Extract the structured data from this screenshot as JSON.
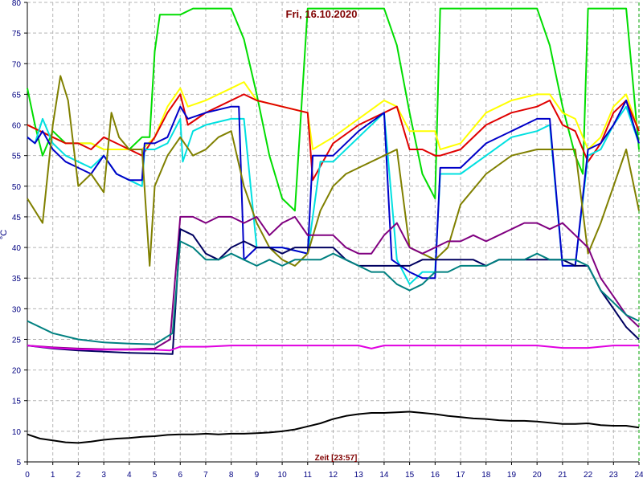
{
  "chart_data": {
    "type": "line",
    "title": "Fri, 16.10.2020",
    "xlabel": "Zeit [23:57]",
    "ylabel": "°C",
    "xlim": [
      0,
      24
    ],
    "ylim": [
      5,
      80
    ],
    "xticks": [
      0,
      1,
      2,
      3,
      4,
      5,
      6,
      7,
      8,
      9,
      10,
      11,
      12,
      13,
      14,
      15,
      16,
      17,
      18,
      19,
      20,
      21,
      22,
      23,
      24
    ],
    "yticks": [
      5,
      10,
      15,
      20,
      25,
      30,
      35,
      40,
      45,
      50,
      55,
      60,
      65,
      70,
      75,
      80
    ],
    "grid": true,
    "background": "#ffffff",
    "grid_color": "#b4b4b4",
    "series": [
      {
        "color": "#00dd00",
        "x": [
          0,
          0.3,
          0.6,
          1,
          1.5,
          2,
          2.5,
          3,
          3.5,
          4,
          4.5,
          4.8,
          5,
          5.2,
          6,
          6.5,
          7,
          7.5,
          8,
          8.5,
          9,
          9.5,
          10,
          10.5,
          11,
          11.2,
          12,
          13,
          14,
          14.5,
          15,
          15.5,
          16,
          16.2,
          17,
          18,
          19,
          20,
          20.5,
          21,
          21.5,
          21.8,
          22,
          22.2,
          23,
          23.5,
          24
        ],
        "y": [
          66,
          60,
          55,
          59,
          57,
          57,
          57,
          56,
          56,
          56,
          58,
          58,
          72,
          78,
          78,
          79,
          79,
          79,
          79,
          74,
          65,
          55,
          48,
          46,
          79,
          79,
          79,
          79,
          79,
          73,
          62,
          52,
          48,
          79,
          79,
          79,
          79,
          79,
          73,
          63,
          55,
          52,
          79,
          79,
          79,
          79,
          56
        ]
      },
      {
        "color": "#ffff00",
        "x": [
          0,
          0.5,
          1,
          1.5,
          2,
          2.5,
          3,
          3.5,
          4,
          4.5,
          5,
          5.5,
          6,
          6.3,
          7,
          8,
          8.5,
          9,
          10,
          11,
          11.2,
          12,
          13,
          14,
          14.5,
          15,
          15.5,
          16,
          16.2,
          17,
          18,
          19,
          20,
          20.5,
          21,
          21.5,
          22,
          22.5,
          23,
          23.5,
          24
        ],
        "y": [
          60,
          59,
          58,
          57,
          57,
          57,
          56,
          56,
          56,
          56,
          58,
          63,
          66,
          63,
          64,
          66,
          67,
          64,
          63,
          62,
          56,
          58,
          61,
          64,
          63,
          59,
          59,
          59,
          56,
          57,
          62,
          64,
          65,
          65,
          62,
          61,
          56,
          58,
          63,
          65,
          59
        ]
      },
      {
        "color": "#e00000",
        "x": [
          0,
          0.5,
          1,
          1.5,
          2,
          2.5,
          3,
          3.5,
          4,
          4.5,
          5,
          5.5,
          6,
          6.3,
          7,
          8,
          8.5,
          9,
          10,
          11,
          11.2,
          12,
          13,
          14,
          14.5,
          15,
          15.5,
          16,
          16.2,
          17,
          18,
          19,
          20,
          20.5,
          21,
          21.5,
          22,
          22.5,
          23,
          23.5,
          24
        ],
        "y": [
          60,
          59,
          58,
          57,
          57,
          56,
          58,
          57,
          56,
          55,
          58,
          62,
          65,
          60,
          62,
          64,
          65,
          64,
          63,
          62,
          51,
          57,
          60,
          62,
          63,
          56,
          56,
          55,
          55,
          56,
          60,
          62,
          63,
          64,
          60,
          59,
          54,
          57,
          62,
          64,
          59
        ]
      },
      {
        "color": "#00e0e0",
        "x": [
          0,
          0.3,
          0.6,
          1,
          1.5,
          2,
          2.5,
          3,
          3.5,
          4,
          4.5,
          4.6,
          5,
          5.5,
          6,
          6.1,
          6.5,
          7,
          8,
          8.5,
          9,
          10,
          11,
          11.5,
          12,
          13,
          14,
          14.5,
          15,
          15.5,
          16,
          16.2,
          17,
          18,
          19,
          20,
          20.5,
          21,
          21.5,
          22,
          22.5,
          23,
          23.5,
          24
        ],
        "y": [
          58,
          57,
          61,
          57,
          55,
          54,
          53,
          55,
          52,
          51,
          50,
          56,
          56,
          57,
          61,
          54,
          59,
          60,
          61,
          61,
          40,
          40,
          39,
          54,
          54,
          58,
          62,
          38,
          34,
          36,
          36,
          52,
          52,
          55,
          58,
          59,
          60,
          37,
          37,
          55,
          56,
          60,
          63,
          57
        ]
      },
      {
        "color": "#0000c8",
        "x": [
          0,
          0.3,
          0.6,
          1,
          1.5,
          2,
          2.5,
          3,
          3.5,
          4,
          4.5,
          4.6,
          5,
          5.5,
          6,
          6.3,
          7,
          8,
          8.3,
          8.5,
          9,
          10,
          11,
          11.2,
          12,
          13,
          14,
          14.3,
          15,
          15.5,
          16,
          16.2,
          17,
          18,
          19,
          20,
          20.5,
          21,
          21.5,
          22,
          22.5,
          23,
          23.5,
          24
        ],
        "y": [
          58,
          57,
          59,
          56,
          54,
          53,
          52,
          55,
          52,
          51,
          51,
          57,
          57,
          58,
          63,
          61,
          62,
          63,
          63,
          38,
          40,
          40,
          39,
          55,
          55,
          59,
          62,
          38,
          36,
          35,
          35,
          53,
          53,
          57,
          59,
          61,
          61,
          37,
          37,
          56,
          57,
          60,
          64,
          57
        ]
      },
      {
        "color": "#808000",
        "x": [
          0,
          0.3,
          0.6,
          1,
          1.3,
          1.6,
          2,
          2.5,
          3,
          3.3,
          3.6,
          4,
          4.5,
          4.8,
          5,
          5.5,
          6,
          6.5,
          7,
          7.5,
          8,
          8.5,
          9,
          9.5,
          10,
          10.5,
          11,
          11.5,
          12,
          12.5,
          13,
          14,
          14.5,
          15,
          15.5,
          16,
          16.5,
          17,
          18,
          19,
          20,
          20.5,
          21,
          21.5,
          22,
          22.5,
          23,
          23.5,
          24
        ],
        "y": [
          48,
          46,
          44,
          60,
          68,
          64,
          50,
          52,
          49,
          62,
          58,
          56,
          56,
          37,
          50,
          55,
          58,
          55,
          56,
          58,
          59,
          50,
          44,
          40,
          38,
          37,
          39,
          46,
          50,
          52,
          53,
          55,
          56,
          40,
          39,
          38,
          40,
          47,
          52,
          55,
          56,
          56,
          56,
          56,
          39,
          44,
          50,
          56,
          46
        ]
      },
      {
        "color": "#800080",
        "x": [
          0,
          1,
          2,
          3,
          4,
          5,
          5.6,
          6,
          6.5,
          7,
          7.5,
          8,
          8.5,
          9,
          9.5,
          10,
          10.5,
          11,
          11.5,
          12,
          12.5,
          13,
          13.5,
          14,
          14.5,
          15,
          15.5,
          16,
          16.5,
          17,
          17.5,
          18,
          18.5,
          19,
          19.5,
          20,
          20.5,
          21,
          21.5,
          22,
          22.5,
          23,
          23.5,
          24
        ],
        "y": [
          24,
          23.7,
          23.5,
          23.4,
          23.4,
          23.5,
          25,
          45,
          45,
          44,
          45,
          45,
          44,
          45,
          42,
          44,
          45,
          42,
          42,
          42,
          40,
          39,
          39,
          42,
          44,
          40,
          39,
          40,
          41,
          41,
          42,
          41,
          42,
          43,
          44,
          44,
          43,
          44,
          42,
          40,
          35,
          32,
          29,
          27
        ]
      },
      {
        "color": "#000060",
        "x": [
          0,
          1,
          2,
          3,
          4,
          5,
          5.7,
          6,
          6.5,
          7,
          7.5,
          8,
          8.5,
          9,
          9.5,
          10,
          10.5,
          11,
          11.5,
          12,
          12.5,
          13,
          13.5,
          14,
          14.5,
          15,
          15.5,
          16,
          16.5,
          17,
          17.5,
          18,
          18.5,
          19,
          19.5,
          20,
          20.5,
          21,
          21.5,
          22,
          22.5,
          23,
          23.5,
          24
        ],
        "y": [
          24,
          23.5,
          23.2,
          23,
          22.8,
          22.7,
          22.6,
          43,
          42,
          39,
          38,
          40,
          41,
          40,
          40,
          39,
          40,
          40,
          40,
          40,
          38,
          37,
          37,
          37,
          37,
          37,
          38,
          38,
          38,
          38,
          38,
          37,
          38,
          38,
          38,
          38,
          38,
          38,
          37,
          37,
          33,
          30,
          27,
          25
        ]
      },
      {
        "color": "#008080",
        "x": [
          0,
          1,
          2,
          3,
          4,
          5,
          5.7,
          6,
          6.5,
          7,
          7.5,
          8,
          8.5,
          9,
          9.5,
          10,
          10.5,
          11,
          11.5,
          12,
          12.5,
          13,
          13.5,
          14,
          14.5,
          15,
          15.5,
          16,
          16.5,
          17,
          17.5,
          18,
          18.5,
          19,
          19.5,
          20,
          20.5,
          21,
          21.5,
          22,
          22.5,
          23,
          23.5,
          24
        ],
        "y": [
          28,
          26,
          25,
          24.5,
          24.3,
          24.2,
          26,
          41,
          40,
          38,
          38,
          39,
          38,
          37,
          38,
          37,
          38,
          38,
          38,
          39,
          38,
          37,
          36,
          36,
          34,
          33,
          34,
          36,
          36,
          37,
          37,
          37,
          38,
          38,
          38,
          39,
          38,
          38,
          38,
          37,
          33,
          31,
          29,
          28
        ]
      },
      {
        "color": "#e000e0",
        "x": [
          0,
          1,
          2,
          3,
          4,
          5,
          5.6,
          6,
          7,
          8,
          9,
          10,
          11,
          12,
          13,
          13.5,
          14,
          15,
          16,
          17,
          18,
          19,
          20,
          21,
          22,
          23,
          24
        ],
        "y": [
          24,
          23.6,
          23.4,
          23.3,
          23.3,
          23.3,
          23.2,
          23.8,
          23.8,
          24,
          24,
          24,
          24,
          24,
          24,
          23.5,
          24,
          24,
          24,
          24,
          24,
          24,
          24,
          23.6,
          23.6,
          24,
          24
        ]
      },
      {
        "color": "#000000",
        "x": [
          0,
          0.5,
          1,
          1.5,
          2,
          2.5,
          3,
          3.5,
          4,
          4.5,
          5,
          5.5,
          6,
          6.5,
          7,
          7.5,
          8,
          8.5,
          9,
          9.5,
          10,
          10.5,
          11,
          11.5,
          12,
          12.5,
          13,
          13.5,
          14,
          14.5,
          15,
          15.5,
          16,
          16.5,
          17,
          17.5,
          18,
          18.5,
          19,
          19.5,
          20,
          20.5,
          21,
          21.5,
          22,
          22.5,
          23,
          23.5,
          24
        ],
        "y": [
          9.5,
          8.8,
          8.5,
          8.2,
          8.1,
          8.3,
          8.6,
          8.8,
          8.9,
          9.1,
          9.2,
          9.4,
          9.5,
          9.5,
          9.6,
          9.5,
          9.6,
          9.6,
          9.7,
          9.8,
          10,
          10.3,
          10.8,
          11.3,
          12,
          12.5,
          12.8,
          13,
          13,
          13.1,
          13.2,
          13,
          12.8,
          12.5,
          12.3,
          12.1,
          12,
          11.8,
          11.7,
          11.7,
          11.6,
          11.4,
          11.2,
          11.2,
          11.3,
          11,
          10.9,
          10.9,
          10.6
        ]
      }
    ]
  }
}
